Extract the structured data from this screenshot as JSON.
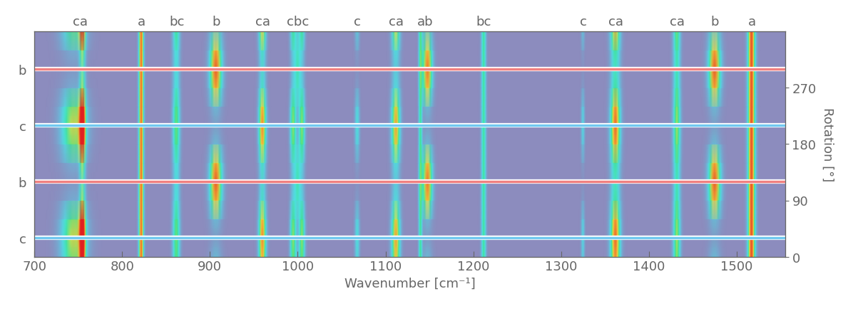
{
  "chart_data": {
    "type": "heatmap",
    "xlabel": "Wavenumber [cm⁻¹]",
    "ylabel": "Rotation [°]",
    "xlim": [
      700,
      1555
    ],
    "xticks": [
      700,
      800,
      900,
      1000,
      1100,
      1200,
      1300,
      1400,
      1500
    ],
    "ylim": [
      0,
      360
    ],
    "yticks": [
      0,
      90,
      180,
      270
    ],
    "intensity_range": [
      0,
      1
    ],
    "rotation": [
      0,
      30,
      60,
      90,
      120,
      150,
      180,
      210,
      240,
      270,
      300,
      330,
      360
    ],
    "peak_labels": [
      {
        "value": 752,
        "label": "ca"
      },
      {
        "value": 822,
        "label": "a"
      },
      {
        "value": 862,
        "label": "bc"
      },
      {
        "value": 907,
        "label": "b"
      },
      {
        "value": 960,
        "label": "ca"
      },
      {
        "value": 1000,
        "label": "cbc"
      },
      {
        "value": 1068,
        "label": "c"
      },
      {
        "value": 1112,
        "label": "ca"
      },
      {
        "value": 1145,
        "label": "ab"
      },
      {
        "value": 1212,
        "label": "bc"
      },
      {
        "value": 1325,
        "label": "c"
      },
      {
        "value": 1362,
        "label": "ca"
      },
      {
        "value": 1432,
        "label": "ca"
      },
      {
        "value": 1475,
        "label": "b"
      },
      {
        "value": 1517,
        "label": "a"
      }
    ],
    "markers": [
      {
        "value": 300,
        "label": "b",
        "color": "#f08080"
      },
      {
        "value": 210,
        "label": "c",
        "color": "#70c8f0"
      },
      {
        "value": 120,
        "label": "b",
        "color": "#f08080"
      },
      {
        "value": 30,
        "label": "c",
        "color": "#70c8f0"
      }
    ],
    "peaks": [
      {
        "center": 745,
        "width": 10,
        "intensity": [
          0.53,
          0.7,
          0.53,
          0.18,
          0,
          0.18,
          0.53,
          0.7,
          0.53,
          0.18,
          0,
          0.18,
          0.53
        ]
      },
      {
        "center": 755,
        "width": 2.5,
        "intensity": [
          0.84,
          1,
          0.84,
          0.51,
          0.35,
          0.51,
          0.84,
          1,
          0.84,
          0.51,
          0.35,
          0.51,
          0.84
        ]
      },
      {
        "center": 822,
        "width": 2,
        "intensity": [
          0.85,
          0.85,
          0.85,
          0.85,
          0.85,
          0.85,
          0.85,
          0.85,
          0.85,
          0.85,
          0.85,
          0.85,
          0.85
        ]
      },
      {
        "center": 862,
        "width": 3,
        "intensity": [
          0.49,
          0.55,
          0.49,
          0.36,
          0.3,
          0.36,
          0.49,
          0.55,
          0.49,
          0.36,
          0.3,
          0.36,
          0.49
        ]
      },
      {
        "center": 907,
        "width": 5,
        "intensity": [
          0.24,
          0,
          0.24,
          0.71,
          0.95,
          0.71,
          0.24,
          0,
          0.24,
          0.71,
          0.95,
          0.71,
          0.24
        ]
      },
      {
        "center": 960,
        "width": 3,
        "intensity": [
          0.7,
          0.85,
          0.7,
          0.4,
          0.25,
          0.4,
          0.7,
          0.85,
          0.7,
          0.4,
          0.25,
          0.4,
          0.7
        ]
      },
      {
        "center": 995,
        "width": 2.5,
        "intensity": [
          0.49,
          0.6,
          0.49,
          0.26,
          0.15,
          0.26,
          0.49,
          0.6,
          0.49,
          0.26,
          0.15,
          0.26,
          0.49
        ]
      },
      {
        "center": 1000,
        "width": 2.5,
        "intensity": [
          0.1,
          0,
          0.1,
          0.3,
          0.4,
          0.3,
          0.1,
          0,
          0.1,
          0.3,
          0.4,
          0.3,
          0.1
        ]
      },
      {
        "center": 1005,
        "width": 2.5,
        "intensity": [
          0.49,
          0.6,
          0.49,
          0.26,
          0.15,
          0.26,
          0.49,
          0.6,
          0.49,
          0.26,
          0.15,
          0.26,
          0.49
        ]
      },
      {
        "center": 1068,
        "width": 2,
        "intensity": [
          0.26,
          0.35,
          0.26,
          0.09,
          0,
          0.09,
          0.26,
          0.35,
          0.26,
          0.09,
          0,
          0.09,
          0.26
        ]
      },
      {
        "center": 1112,
        "width": 3.5,
        "intensity": [
          0.65,
          0.8,
          0.65,
          0.35,
          0.2,
          0.35,
          0.65,
          0.8,
          0.65,
          0.35,
          0.2,
          0.35,
          0.65
        ]
      },
      {
        "center": 1140,
        "width": 1.5,
        "intensity": [
          0.45,
          0.45,
          0.45,
          0.45,
          0.45,
          0.45,
          0.45,
          0.45,
          0.45,
          0.45,
          0.45,
          0.45,
          0.45
        ]
      },
      {
        "center": 1148,
        "width": 4,
        "intensity": [
          0.23,
          0,
          0.23,
          0.68,
          0.9,
          0.68,
          0.23,
          0,
          0.23,
          0.68,
          0.9,
          0.68,
          0.23
        ]
      },
      {
        "center": 1212,
        "width": 2,
        "intensity": [
          0.45,
          0.45,
          0.45,
          0.45,
          0.45,
          0.45,
          0.45,
          0.45,
          0.45,
          0.45,
          0.45,
          0.45,
          0.45
        ]
      },
      {
        "center": 1325,
        "width": 1.5,
        "intensity": [
          0.23,
          0.3,
          0.23,
          0.08,
          0,
          0.08,
          0.23,
          0.3,
          0.23,
          0.08,
          0,
          0.08,
          0.23
        ]
      },
      {
        "center": 1362,
        "width": 4,
        "intensity": [
          0.76,
          0.9,
          0.76,
          0.49,
          0.35,
          0.49,
          0.76,
          0.9,
          0.76,
          0.49,
          0.35,
          0.49,
          0.76
        ]
      },
      {
        "center": 1432,
        "width": 3,
        "intensity": [
          0.55,
          0.6,
          0.55,
          0.45,
          0.4,
          0.45,
          0.55,
          0.6,
          0.55,
          0.45,
          0.4,
          0.45,
          0.55
        ]
      },
      {
        "center": 1475,
        "width": 5,
        "intensity": [
          0.24,
          0,
          0.24,
          0.71,
          0.95,
          0.71,
          0.24,
          0,
          0.24,
          0.71,
          0.95,
          0.71,
          0.24
        ]
      },
      {
        "center": 1517,
        "width": 3,
        "intensity": [
          0.9,
          0.9,
          0.9,
          0.9,
          0.9,
          0.9,
          0.9,
          0.9,
          0.9,
          0.9,
          0.9,
          0.9,
          0.9
        ]
      }
    ]
  }
}
